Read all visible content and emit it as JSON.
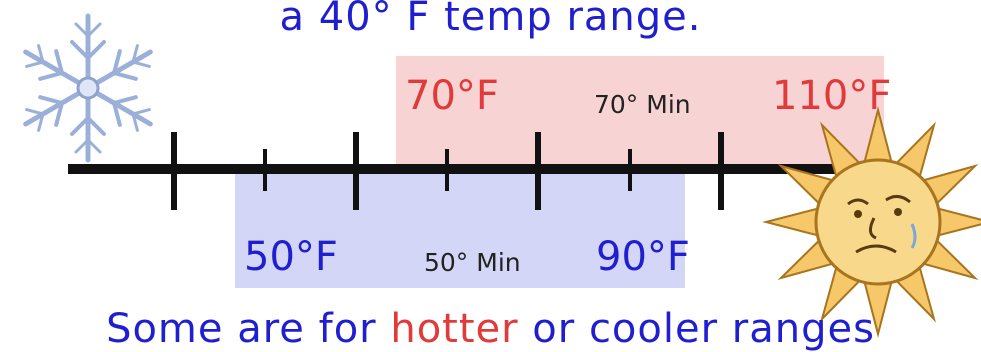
{
  "title": "a 40° F temp range.",
  "hot_range": {
    "low_label": "70°F",
    "high_label": "110°F",
    "note": "70° Min",
    "color": "#f8d3d3",
    "text_color": "#e03a3a"
  },
  "cool_range": {
    "low_label": "50°F",
    "high_label": "90°F",
    "note": "50° Min",
    "color": "#d4d6f7",
    "text_color": "#1f1fd0"
  },
  "bottom_text": {
    "before": "Some are for ",
    "highlight": "hotter",
    "after": " or cooler ranges"
  },
  "icons": {
    "left": "snowflake-icon",
    "right": "sun-icon"
  }
}
